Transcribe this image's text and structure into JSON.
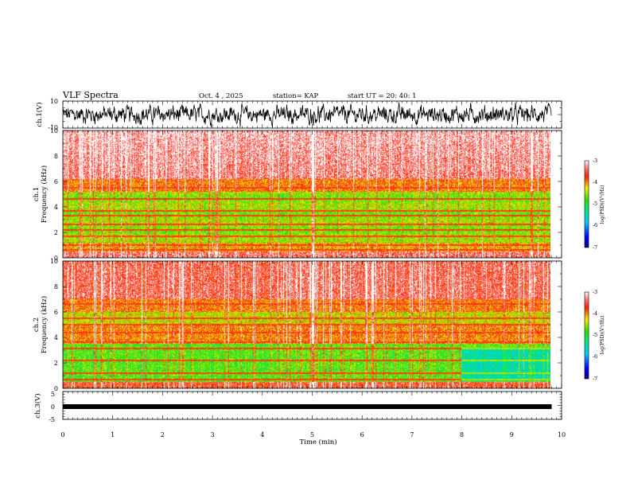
{
  "header": {
    "title": "VLF Spectra",
    "date": "Oct. 4 , 2025",
    "station": "station= KAP",
    "start": "start UT = 20: 40: 1"
  },
  "chart_data": [
    {
      "type": "line",
      "name": "ch1-waveform",
      "ylabel": "ch.1(V)",
      "ylim": [
        -10,
        10
      ],
      "yticks": [
        "10",
        "-10"
      ],
      "xlim": [
        0,
        10
      ],
      "data_end_min": 9.8
    },
    {
      "type": "heatmap",
      "name": "ch1-spectrogram",
      "ylabel_line1": "ch.1",
      "ylabel_line2": "Frequency (kHz)",
      "yticks": [
        "0",
        "2",
        "4",
        "6",
        "8",
        "10"
      ],
      "ylim": [
        0,
        10
      ],
      "xlim": [
        0,
        10
      ],
      "data_end_min": 9.8,
      "colorbar": {
        "ticks": [
          "-3",
          "-4",
          "-5",
          "-6",
          "-7"
        ],
        "range": [
          -7,
          -3
        ],
        "label": "log(PSD)(V²/Hz)"
      }
    },
    {
      "type": "heatmap",
      "name": "ch2-spectrogram",
      "ylabel_line1": "ch.2",
      "ylabel_line2": "Frequency (kHz)",
      "yticks": [
        "0",
        "2",
        "4",
        "6",
        "8",
        "10"
      ],
      "ylim": [
        0,
        10
      ],
      "xlim": [
        0,
        10
      ],
      "data_end_min": 9.8,
      "colorbar": {
        "ticks": [
          "-3",
          "-4",
          "-5",
          "-6",
          "-7"
        ],
        "range": [
          -7,
          -3
        ],
        "label": "log(PSD)(V²/Hz)"
      }
    },
    {
      "type": "line",
      "name": "ch3-waveform",
      "ylabel": "ch.3(V)",
      "ylim": [
        -5,
        5
      ],
      "yticks": [
        "5",
        "0",
        "-5"
      ],
      "xlim": [
        0,
        10
      ],
      "value": 0
    }
  ],
  "xaxis": {
    "ticks": [
      "0",
      "1",
      "2",
      "3",
      "4",
      "5",
      "6",
      "7",
      "8",
      "9",
      "10"
    ],
    "label": "Time (min)"
  }
}
